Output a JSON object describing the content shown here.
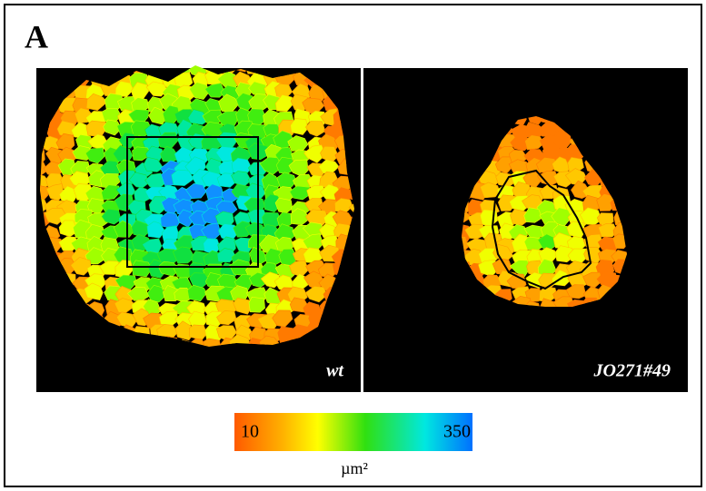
{
  "panel_label": "A",
  "images": [
    {
      "label": "wt"
    },
    {
      "label": "JO271#49"
    }
  ],
  "colorbar": {
    "min": 10,
    "max": 350,
    "unit": "µm²"
  }
}
